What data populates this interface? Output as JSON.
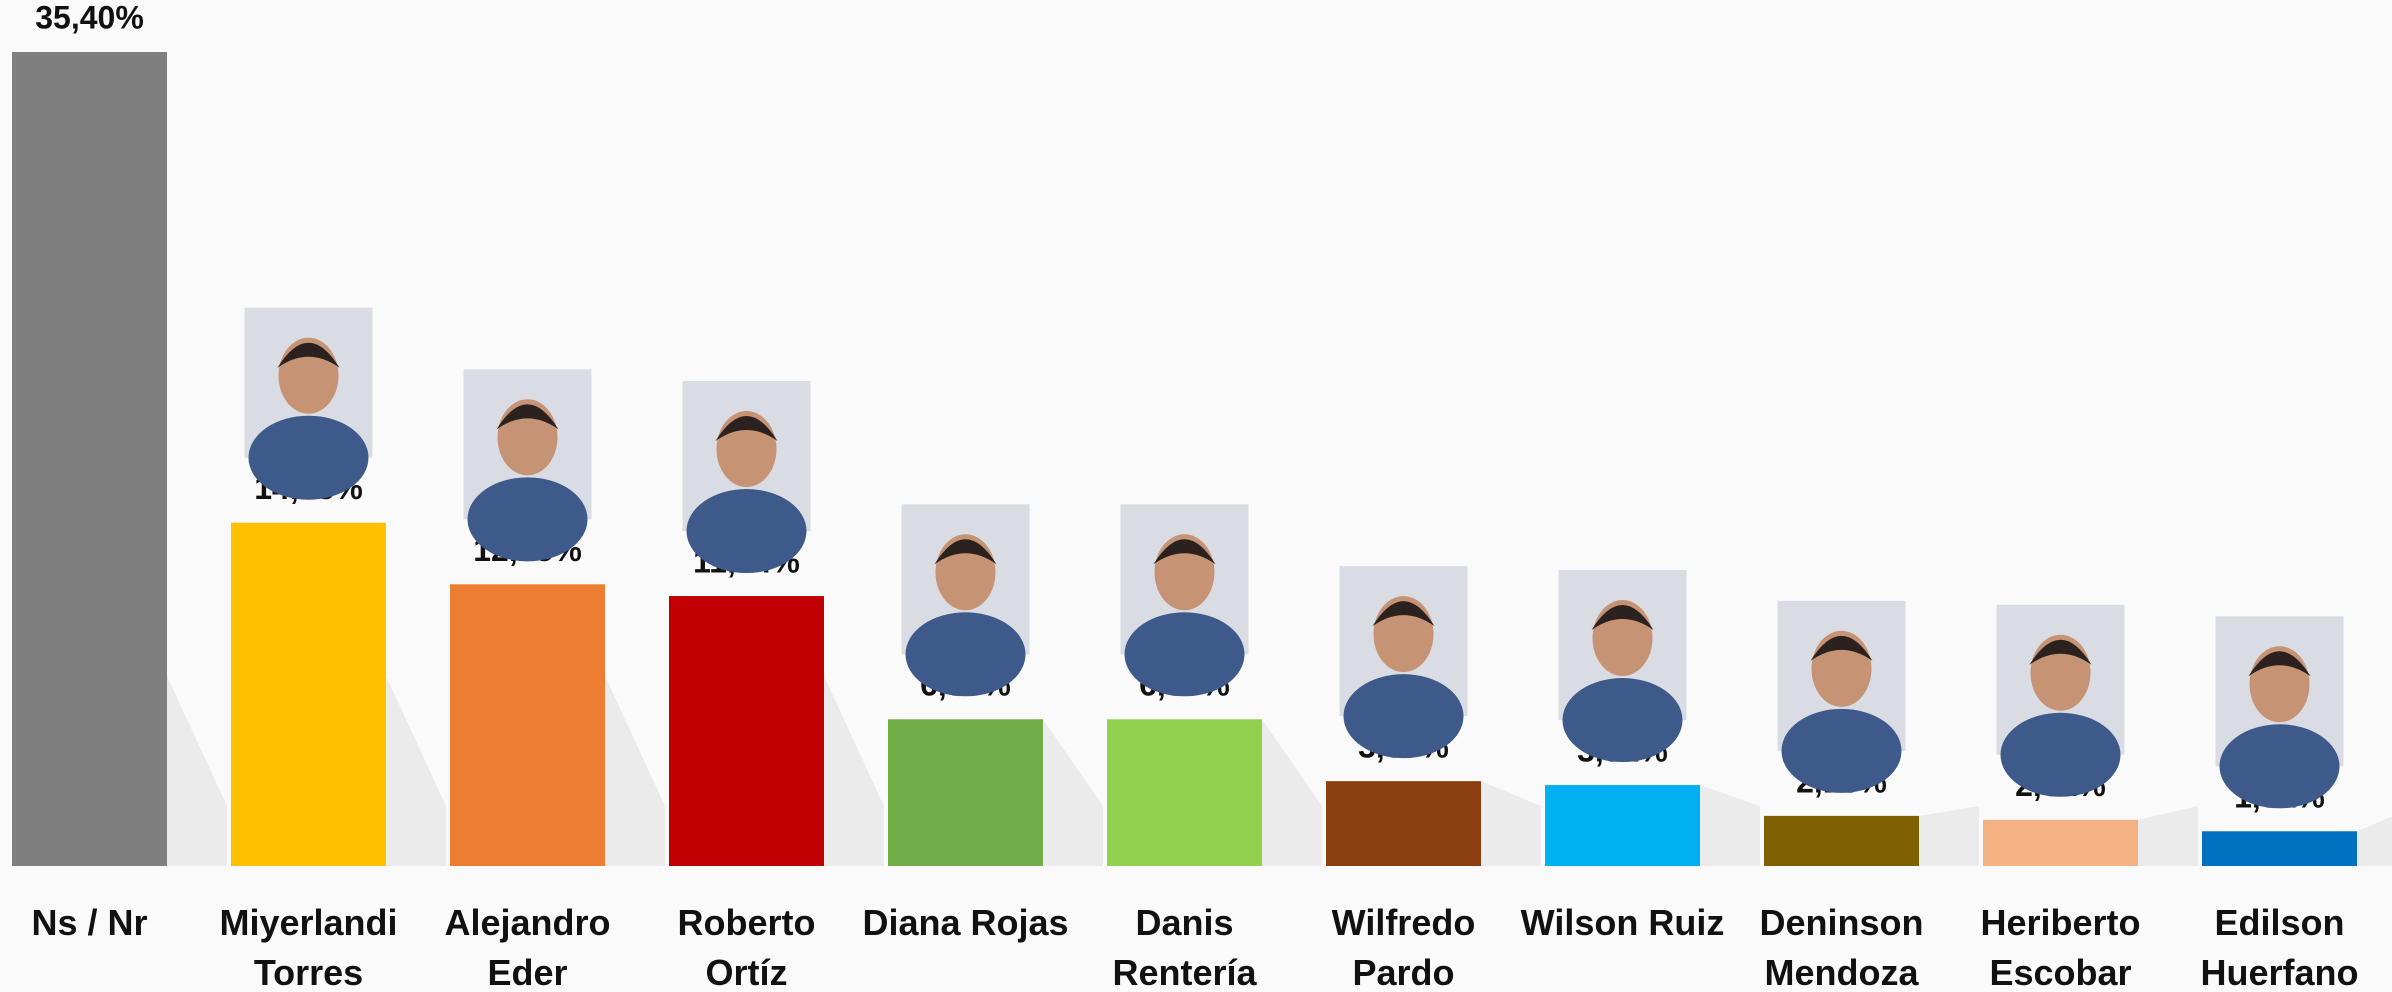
{
  "chart_data": {
    "type": "bar",
    "categories": [
      "Ns / Nr",
      "Miyerlandi Torres",
      "Alejandro Eder",
      "Roberto Ortíz",
      "Diana Rojas",
      "Danis Rentería",
      "Wilfredo Pardo",
      "Wilson Ruiz",
      "Deninson Mendoza",
      "Heriberto Escobar",
      "Edilson Huerfano"
    ],
    "values": [
      35.4,
      14.93,
      12.25,
      11.74,
      6.38,
      6.38,
      3.69,
      3.52,
      2.18,
      2.01,
      1.51
    ],
    "value_labels": [
      "35,40%",
      "14,93%",
      "12,25%",
      "11,74%",
      "6,38%",
      "6,38%",
      "3,69%",
      "3,52%",
      "2,18%",
      "2,01%",
      "1,51%"
    ],
    "colors": [
      "#7f7f7f",
      "#ffc000",
      "#ed7d31",
      "#c00000",
      "#70ad47",
      "#92d050",
      "#8b3e0f",
      "#00b0f0",
      "#7f6000",
      "#f4b183",
      "#0070c0"
    ]
  }
}
